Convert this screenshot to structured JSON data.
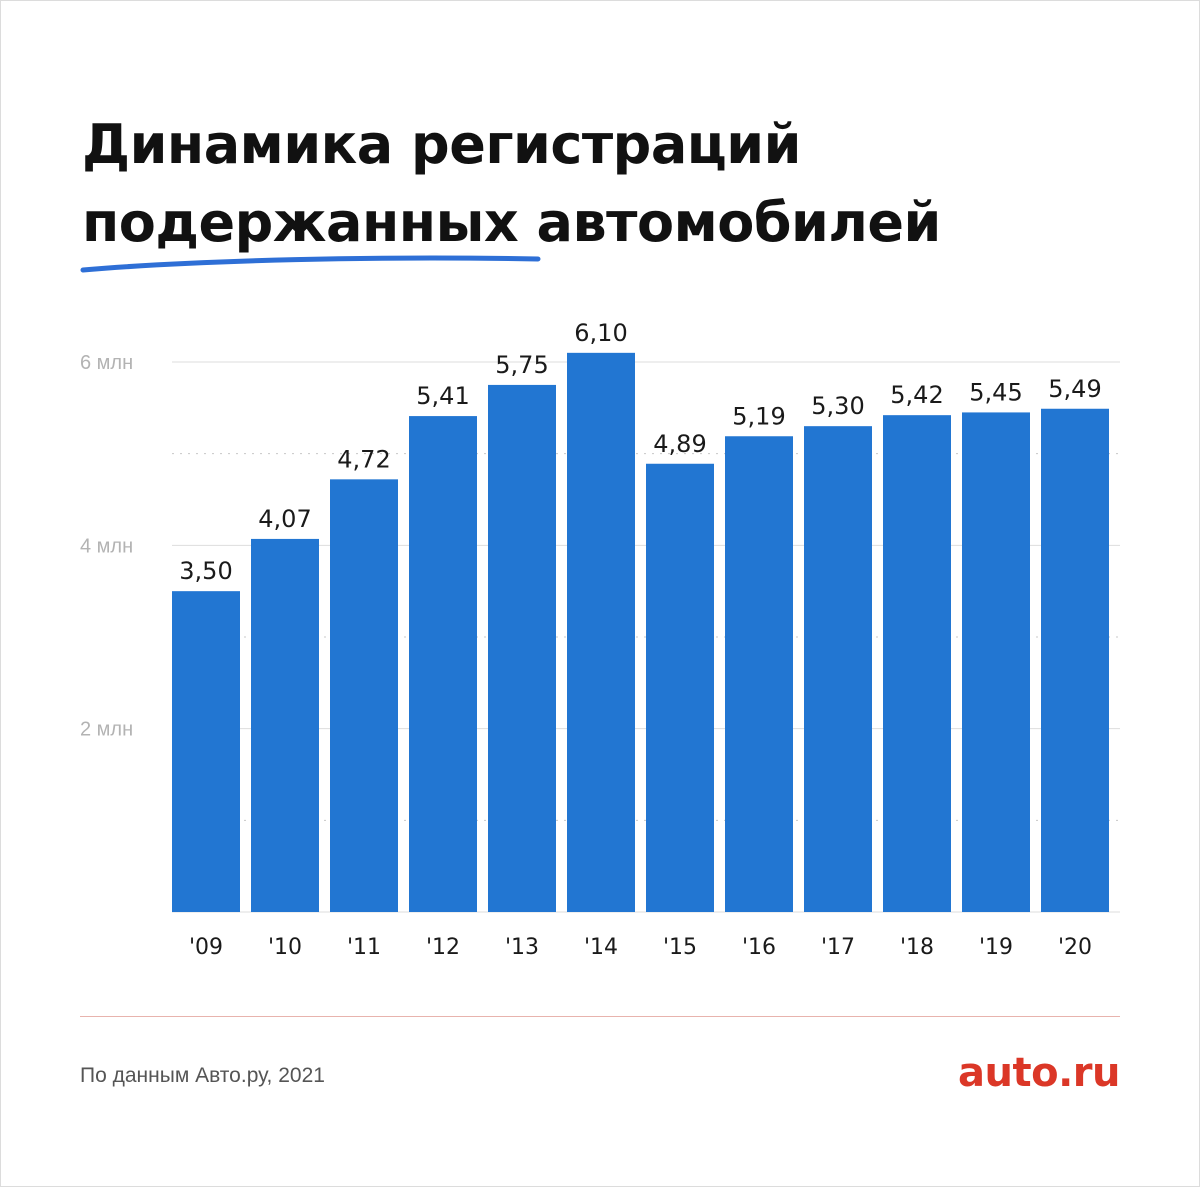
{
  "title": {
    "line1": "Динамика регистраций",
    "line2": "подержанных автомобилей"
  },
  "footer": {
    "source": "По данным Авто.ру, 2021",
    "logo": "auto.ru"
  },
  "colors": {
    "bar": "#2276d2",
    "accent_underline": "#2e6fd6",
    "logo": "#db3727",
    "rule": "#e8b3ad"
  },
  "chart_data": {
    "type": "bar",
    "title": "Динамика регистраций подержанных автомобилей",
    "xlabel": "",
    "ylabel": "",
    "categories": [
      "'09",
      "'10",
      "'11",
      "'12",
      "'13",
      "'14",
      "'15",
      "'16",
      "'17",
      "'18",
      "'19",
      "'20"
    ],
    "values": [
      3.5,
      4.07,
      4.72,
      5.41,
      5.75,
      6.1,
      4.89,
      5.19,
      5.3,
      5.42,
      5.45,
      5.49
    ],
    "value_labels": [
      "3,50",
      "4,07",
      "4,72",
      "5,41",
      "5,75",
      "6,10",
      "4,89",
      "5,19",
      "5,30",
      "5,42",
      "5,45",
      "5,49"
    ],
    "ylim": [
      0,
      6
    ],
    "y_ticks": [
      {
        "value": 2,
        "label": "2 млн"
      },
      {
        "value": 4,
        "label": "4 млн"
      },
      {
        "value": 6,
        "label": "6 млн"
      }
    ],
    "y_minor_ticks": [
      1,
      3,
      5
    ],
    "grid": true,
    "legend": "none"
  }
}
